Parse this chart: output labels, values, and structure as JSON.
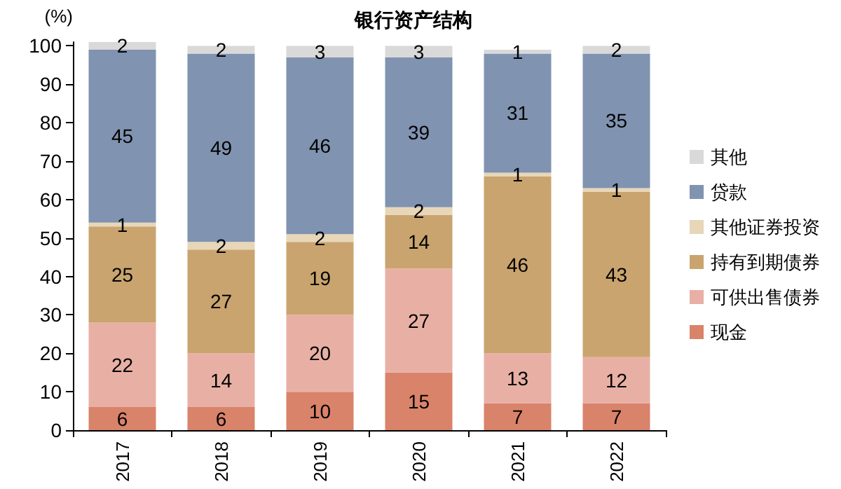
{
  "chart_data": {
    "type": "bar",
    "title": "银行资产结构",
    "ylabel": "(%)",
    "stacked": true,
    "data_labels": true,
    "grid": false,
    "legend": "right",
    "categories": [
      "2017",
      "2018",
      "2019",
      "2020",
      "2021",
      "2022"
    ],
    "ylim": [
      0,
      101
    ],
    "yticks": [
      0,
      10,
      20,
      30,
      40,
      50,
      60,
      70,
      80,
      90,
      100
    ],
    "series": [
      {
        "name": "现金",
        "color": "#d9836a",
        "values": [
          6,
          6,
          10,
          15,
          7,
          7
        ]
      },
      {
        "name": "可供出售债券",
        "color": "#e8b0a4",
        "values": [
          22,
          14,
          20,
          27,
          13,
          12
        ]
      },
      {
        "name": "持有到期债券",
        "color": "#c9a46e",
        "values": [
          25,
          27,
          19,
          14,
          46,
          43
        ]
      },
      {
        "name": "其他证券投资",
        "color": "#e8d6b8",
        "values": [
          1,
          2,
          2,
          2,
          1,
          1
        ]
      },
      {
        "name": "贷款",
        "color": "#8093b0",
        "values": [
          45,
          49,
          46,
          39,
          31,
          35
        ]
      },
      {
        "name": "其他",
        "color": "#d9d9d9",
        "values": [
          2,
          2,
          3,
          3,
          1,
          2
        ]
      }
    ]
  }
}
